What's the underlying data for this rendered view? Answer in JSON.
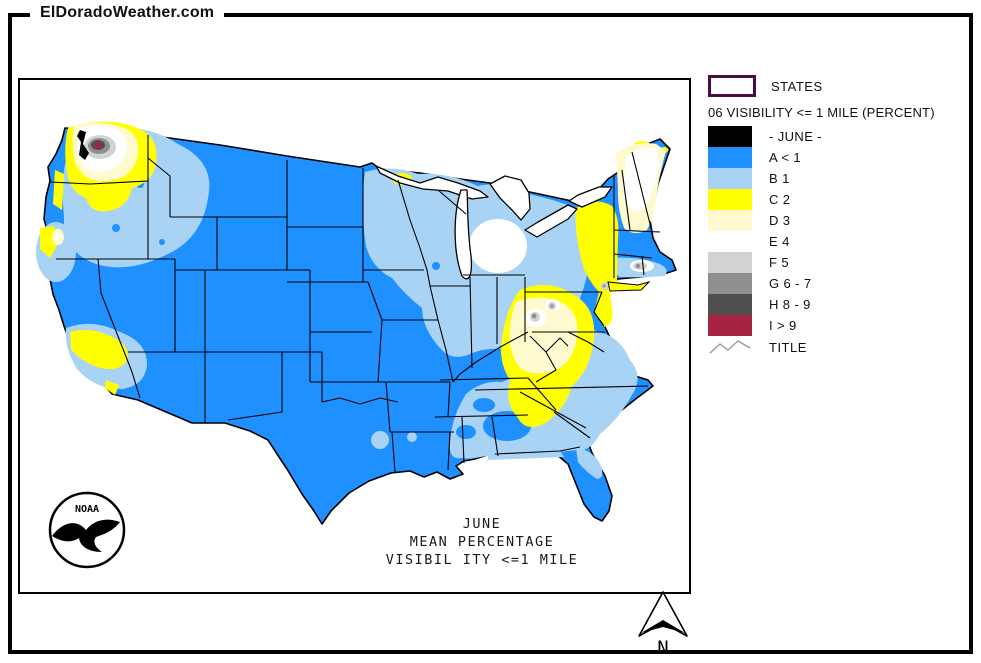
{
  "header": {
    "site_title": "ElDoradoWeather.com"
  },
  "legend": {
    "states_label": "STATES",
    "states_border_color": "#4A0E46",
    "heading": "06 VISIBILITY <= 1 MILE (PERCENT)",
    "items": [
      {
        "label": "- JUNE -",
        "color": "#000000"
      },
      {
        "label": "A < 1",
        "color": "#1E90FF"
      },
      {
        "label": "B 1",
        "color": "#A9D3F5"
      },
      {
        "label": "C 2",
        "color": "#FFFF00"
      },
      {
        "label": "D 3",
        "color": "#FFFACD"
      },
      {
        "label": "E 4",
        "color": "#FFFFFF"
      },
      {
        "label": "F 5",
        "color": "#D2D2D2"
      },
      {
        "label": "G 6 - 7",
        "color": "#8F8F8F"
      },
      {
        "label": "H 8 - 9",
        "color": "#4F4F4F"
      },
      {
        "label": "I > 9",
        "color": "#A62441"
      }
    ],
    "title_label": "TITLE"
  },
  "map": {
    "caption_lines": {
      "0": "JUNE",
      "1": "MEAN  PERCENTAGE",
      "2": "VISIBIL ITY  <=1 MILE"
    },
    "noaa_label": "NOAA",
    "compass_label": "N"
  }
}
